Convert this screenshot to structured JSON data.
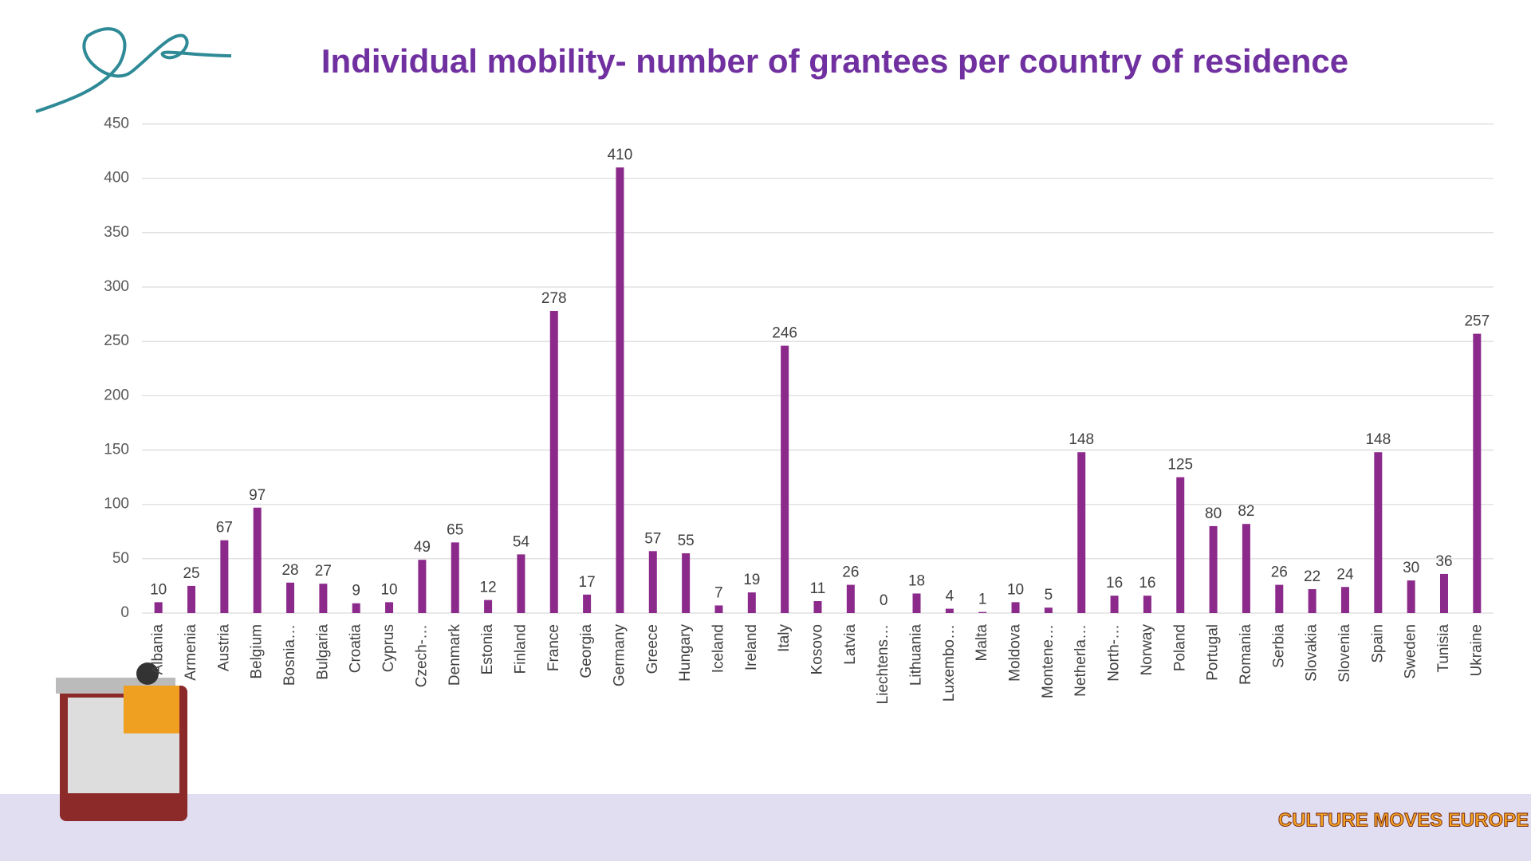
{
  "chart_data": {
    "type": "bar",
    "title": "Individual mobility- number of grantees per country of residence",
    "categories": [
      "Albania",
      "Armenia",
      "Austria",
      "Belgium",
      "Bosnia…",
      "Bulgaria",
      "Croatia",
      "Cyprus",
      "Czech-…",
      "Denmark",
      "Estonia",
      "Finland",
      "France",
      "Georgia",
      "Germany",
      "Greece",
      "Hungary",
      "Iceland",
      "Ireland",
      "Italy",
      "Kosovo",
      "Latvia",
      "Liechtens…",
      "Lithuania",
      "Luxembo…",
      "Malta",
      "Moldova",
      "Montene…",
      "Netherla…",
      "North-…",
      "Norway",
      "Poland",
      "Portugal",
      "Romania",
      "Serbia",
      "Slovakia",
      "Slovenia",
      "Spain",
      "Sweden",
      "Tunisia",
      "Ukraine"
    ],
    "values": [
      10,
      25,
      67,
      97,
      28,
      27,
      9,
      10,
      49,
      65,
      12,
      54,
      278,
      17,
      410,
      57,
      55,
      7,
      19,
      246,
      11,
      26,
      0,
      18,
      4,
      1,
      10,
      5,
      148,
      16,
      16,
      125,
      80,
      82,
      26,
      22,
      24,
      148,
      30,
      36,
      257
    ],
    "color": "#8b2a8b",
    "ylim": [
      0,
      450
    ],
    "yticks": [
      0,
      50,
      100,
      150,
      200,
      250,
      300,
      350,
      400,
      450
    ],
    "grid": true
  },
  "logo": "CULTURE MOVES EUROPE"
}
